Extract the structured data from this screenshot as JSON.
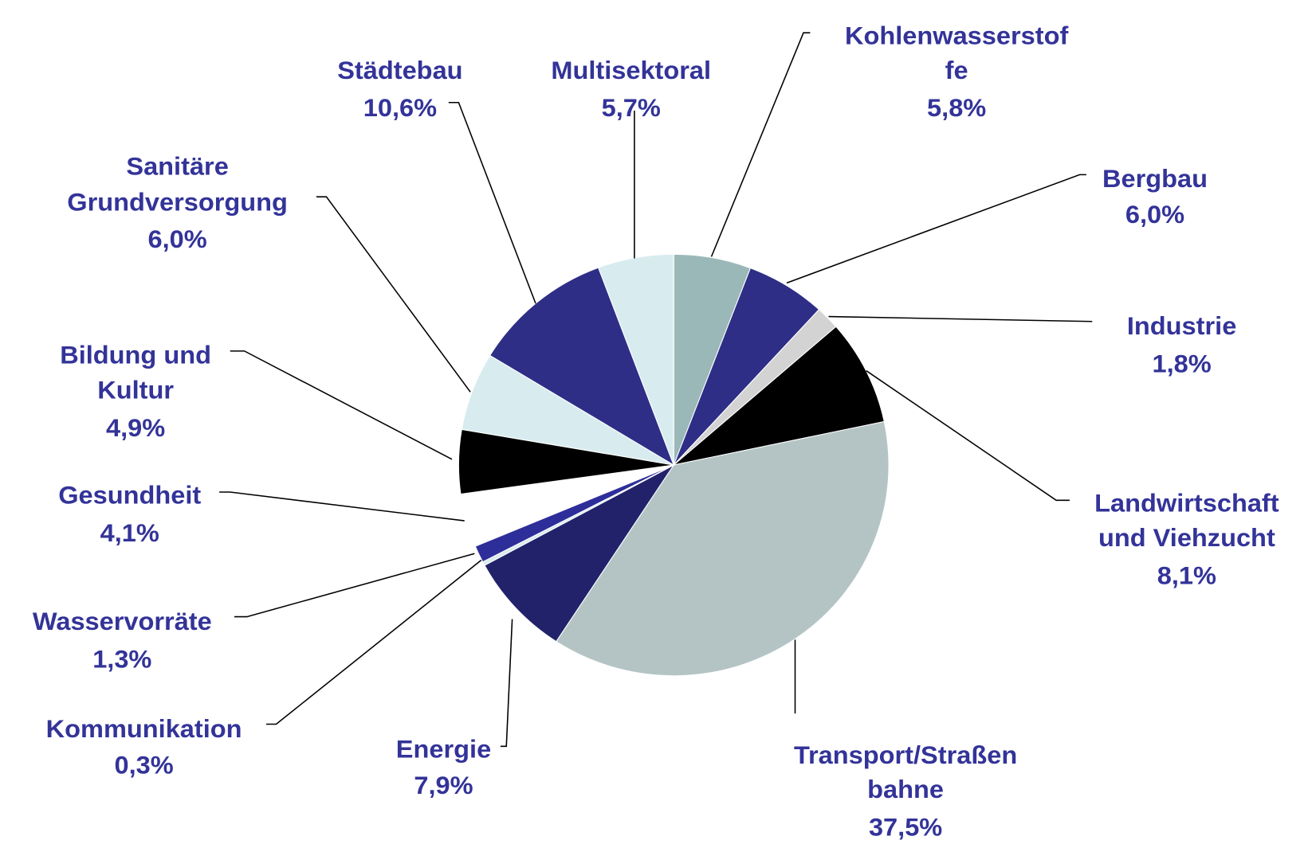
{
  "chart_data": {
    "type": "pie",
    "categories": [
      "Kohlenwasserstof\nfe",
      "Bergbau",
      "Industrie",
      "Landwirtschaft\nund Viehzucht",
      "Transport/Straßen\nbahne",
      "Energie",
      "Kommunikation",
      "Wasservorräte",
      "Gesundheit",
      "Bildung und\nKultur",
      "Sanitäre\nGrundversorgung",
      "Städtebau",
      "Multisektoral"
    ],
    "values": [
      5.8,
      6.0,
      1.8,
      8.1,
      37.5,
      7.9,
      0.3,
      1.3,
      4.1,
      4.9,
      6.0,
      10.6,
      5.7
    ],
    "value_labels": [
      "5,8%",
      "6,0%",
      "1,8%",
      "8,1%",
      "37,5%",
      "7,9%",
      "0,3%",
      "1,3%",
      "4,1%",
      "4,9%",
      "6,0%",
      "10,6%",
      "5,7%"
    ],
    "colors": [
      "#9bb8b8",
      "#2e2e87",
      "#d3d3d3",
      "#000000",
      "#b4c4c4",
      "#22226b",
      "#d8ecef",
      "#2e2e9a",
      "#ffffff",
      "#000000",
      "#d8ecef",
      "#2e2e87",
      "#d8ecef"
    ]
  }
}
